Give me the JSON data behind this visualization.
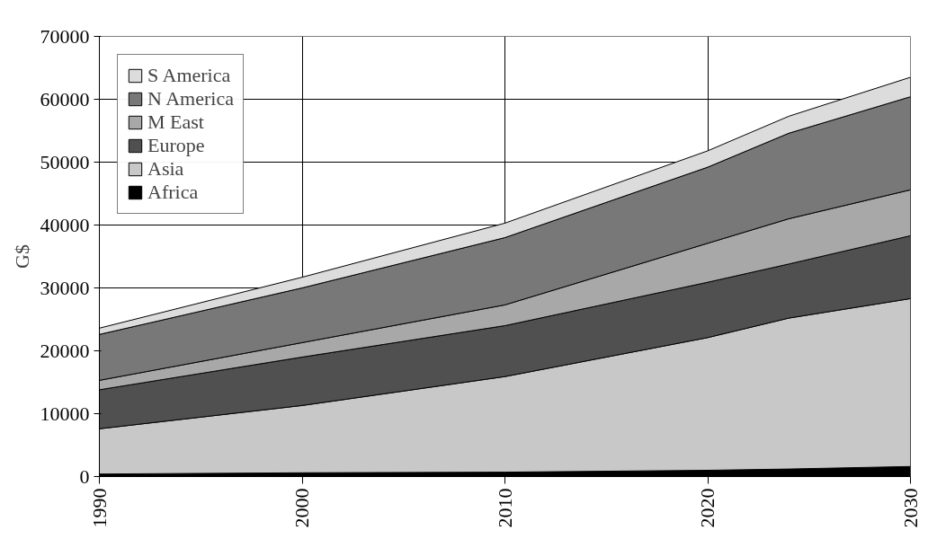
{
  "chart_data": {
    "type": "area",
    "stacked": true,
    "ylabel": "G$",
    "x": [
      1990,
      2000,
      2010,
      2020,
      2024,
      2030
    ],
    "xlim": [
      1990,
      2030
    ],
    "xticks": [
      1990,
      2000,
      2010,
      2020,
      2030
    ],
    "ylim": [
      0,
      70000
    ],
    "yticks": [
      0,
      10000,
      20000,
      30000,
      40000,
      50000,
      60000,
      70000
    ],
    "grid": true,
    "legend": "top left",
    "series": [
      {
        "name": "Africa",
        "color": "#000000",
        "values": [
          400,
          600,
          700,
          1000,
          1200,
          1600
        ]
      },
      {
        "name": "Asia",
        "color": "#c8c8c8",
        "values": [
          7200,
          10700,
          15200,
          21100,
          24000,
          26700
        ]
      },
      {
        "name": "Europe",
        "color": "#505050",
        "values": [
          6200,
          7700,
          8100,
          8800,
          8600,
          10000
        ]
      },
      {
        "name": "M East",
        "color": "#a8a8a8",
        "values": [
          1500,
          2300,
          3300,
          6200,
          7200,
          7300
        ]
      },
      {
        "name": "N America",
        "color": "#787878",
        "values": [
          7300,
          8700,
          10700,
          12100,
          13600,
          14800
        ]
      },
      {
        "name": "S America",
        "color": "#dcdcdc",
        "values": [
          1000,
          1700,
          2300,
          2600,
          2700,
          3100
        ]
      }
    ]
  }
}
